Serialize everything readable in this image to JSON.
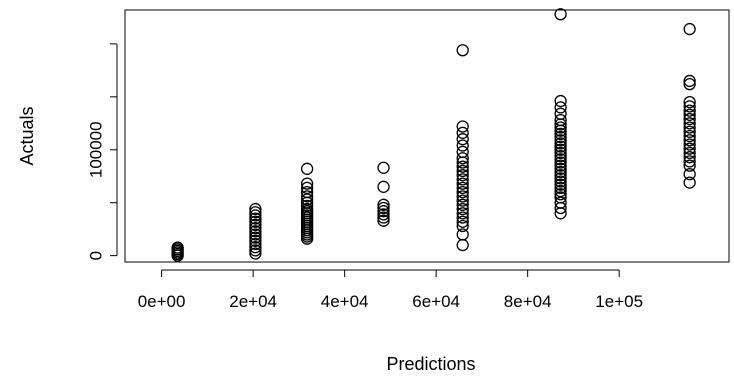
{
  "chart_data": {
    "type": "scatter",
    "title": "",
    "xlabel": "Predictions",
    "ylabel": "Actuals",
    "xlim": [
      -8000,
      124000
    ],
    "ylim": [
      -6000,
      232000
    ],
    "x_ticks": [
      {
        "value": 0,
        "label": "0e+00"
      },
      {
        "value": 20000,
        "label": "2e+04"
      },
      {
        "value": 40000,
        "label": "4e+04"
      },
      {
        "value": 60000,
        "label": "6e+04"
      },
      {
        "value": 80000,
        "label": "8e+04"
      },
      {
        "value": 100000,
        "label": "1e+05"
      }
    ],
    "y_ticks": [
      {
        "value": 0,
        "label": "0"
      },
      {
        "value": 50000,
        "label": ""
      },
      {
        "value": 100000,
        "label": "100000"
      },
      {
        "value": 150000,
        "label": ""
      },
      {
        "value": 200000,
        "label": ""
      }
    ],
    "y_tick_label_anchors": [
      {
        "value": 0,
        "label": "0"
      },
      {
        "value": 100000,
        "label": "100000"
      }
    ],
    "grid": false,
    "marker": "open-circle",
    "clusters": [
      {
        "x": 3500,
        "y": [
          0,
          1500,
          3000,
          4500,
          6000,
          7500
        ]
      },
      {
        "x": 20500,
        "y": [
          2000,
          5000,
          8000,
          11000,
          14000,
          17000,
          20000,
          23000,
          26000,
          29000,
          32000,
          35000,
          38000,
          41000,
          44000
        ]
      },
      {
        "x": 31800,
        "y": [
          16000,
          18000,
          20000,
          22000,
          24000,
          26000,
          28000,
          30000,
          32000,
          34000,
          36000,
          38000,
          40000,
          42000,
          44000,
          47000,
          50000,
          53000,
          56000,
          60000,
          64000,
          68000,
          82000
        ]
      },
      {
        "x": 48500,
        "y": [
          33000,
          36000,
          39000,
          42000,
          45000,
          48000,
          65000,
          83000
        ]
      },
      {
        "x": 65800,
        "y": [
          10000,
          20000,
          28000,
          32000,
          36000,
          40000,
          44000,
          48000,
          52000,
          56000,
          60000,
          64000,
          68000,
          72000,
          76000,
          80000,
          84000,
          88000,
          92000,
          98000,
          104000,
          110000,
          116000,
          122000,
          194000
        ]
      },
      {
        "x": 87200,
        "y": [
          40000,
          45000,
          50000,
          55000,
          58000,
          61000,
          64000,
          67000,
          70000,
          73000,
          76000,
          79000,
          82000,
          85000,
          88000,
          91000,
          94000,
          97000,
          100000,
          103000,
          106000,
          109000,
          112000,
          115000,
          118000,
          121000,
          124000,
          128000,
          134000,
          140000,
          146000,
          228000
        ]
      },
      {
        "x": 115400,
        "y": [
          69000,
          77000,
          85000,
          89000,
          93000,
          97000,
          101000,
          105000,
          109000,
          113000,
          117000,
          121000,
          125000,
          129000,
          133000,
          137000,
          141000,
          145000,
          162000,
          165000,
          214000
        ]
      }
    ]
  }
}
